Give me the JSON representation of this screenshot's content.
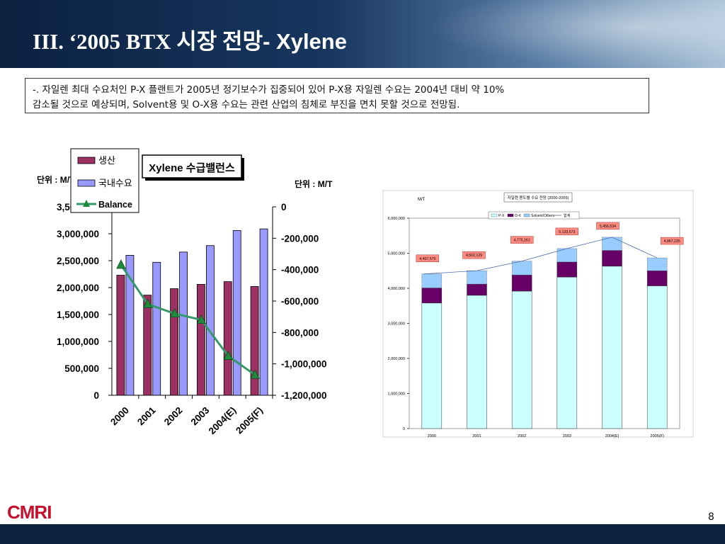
{
  "slide": {
    "title_part1": "III. ‘2005 BTX 시장 전망",
    "title_part2": "- Xylene",
    "note_line1": "-. 자일렌 최대 수요처인 P-X 플랜트가 2005년 정기보수가 집중되어 있어 P-X용 자일렌 수요는 2004년 대비 약 10%",
    "note_line2": "감소될 것으로 예상되며,  Solvent용 및 O-X용 수요는 관련 산업의 침체로 부진을 면치 못할 것으로 전망됨.",
    "logo_text": "CMRI",
    "page_number": "8"
  },
  "colors": {
    "production": "#9c3062",
    "demand": "#9999ff",
    "balance": "#339966",
    "balance_marker": "#1f8a3a",
    "px": "#ccffff",
    "ox": "#660066",
    "solvent": "#99ccff"
  },
  "chart_data": [
    {
      "type": "bar",
      "title": "Xylene 수급밸런스",
      "unit_left": "단위 : M/T",
      "unit_right": "단위 : M/T",
      "categories": [
        "2000",
        "2001",
        "2002",
        "2003",
        "2004(E)",
        "2005(F)"
      ],
      "series": [
        {
          "name": "생산",
          "axis": "left",
          "values": [
            2230000,
            1860000,
            1980000,
            2060000,
            2110000,
            2020000
          ]
        },
        {
          "name": "국내수요",
          "axis": "left",
          "values": [
            2600000,
            2470000,
            2660000,
            2780000,
            3060000,
            3090000
          ]
        },
        {
          "name": "Balance",
          "type": "line",
          "axis": "right",
          "values": [
            -370000,
            -620000,
            -680000,
            -720000,
            -950000,
            -1070000
          ]
        }
      ],
      "ylim_left": [
        0,
        3500000
      ],
      "yticks_left": [
        "0",
        "500,000",
        "1,000,000",
        "1,500,000",
        "2,000,000",
        "2,500,000",
        "3,000,000",
        "3,500,000"
      ],
      "ylim_right": [
        -1200000,
        0
      ],
      "yticks_right": [
        "-1,200,000",
        "-1,000,000",
        "-800,000",
        "-600,000",
        "-400,000",
        "-200,000",
        "0"
      ],
      "legend": "top-left"
    },
    {
      "type": "bar",
      "stacked": true,
      "title": "자일렌 용도별 수요 전망 (2000-2005)",
      "ylabel": "M/T",
      "categories": [
        "2000",
        "2001",
        "2002",
        "2003",
        "2004(E)",
        "2005(F)"
      ],
      "series": [
        {
          "name": "P-X",
          "values": [
            3580000,
            3800000,
            3920000,
            4320000,
            4630000,
            4070000
          ]
        },
        {
          "name": "O-X",
          "values": [
            430000,
            320000,
            460000,
            430000,
            450000,
            430000
          ]
        },
        {
          "name": "Solvent/Others",
          "values": [
            397579,
            382129,
            395161,
            383673,
            376534,
            367235
          ]
        },
        {
          "name": "합계",
          "type": "line",
          "values": [
            4407579,
            4502129,
            4775161,
            5133673,
            5456534,
            4867235
          ]
        }
      ],
      "total_labels": [
        "4,407,579",
        "4,502,129",
        "4,775,161",
        "5,133,673",
        "5,456,534",
        "4,867,235"
      ],
      "ylim": [
        0,
        6000000
      ],
      "yticks": [
        "0",
        "1,000,000",
        "2,000,000",
        "3,000,000",
        "4,000,000",
        "5,000,000",
        "6,000,000"
      ],
      "legend": "top"
    }
  ]
}
